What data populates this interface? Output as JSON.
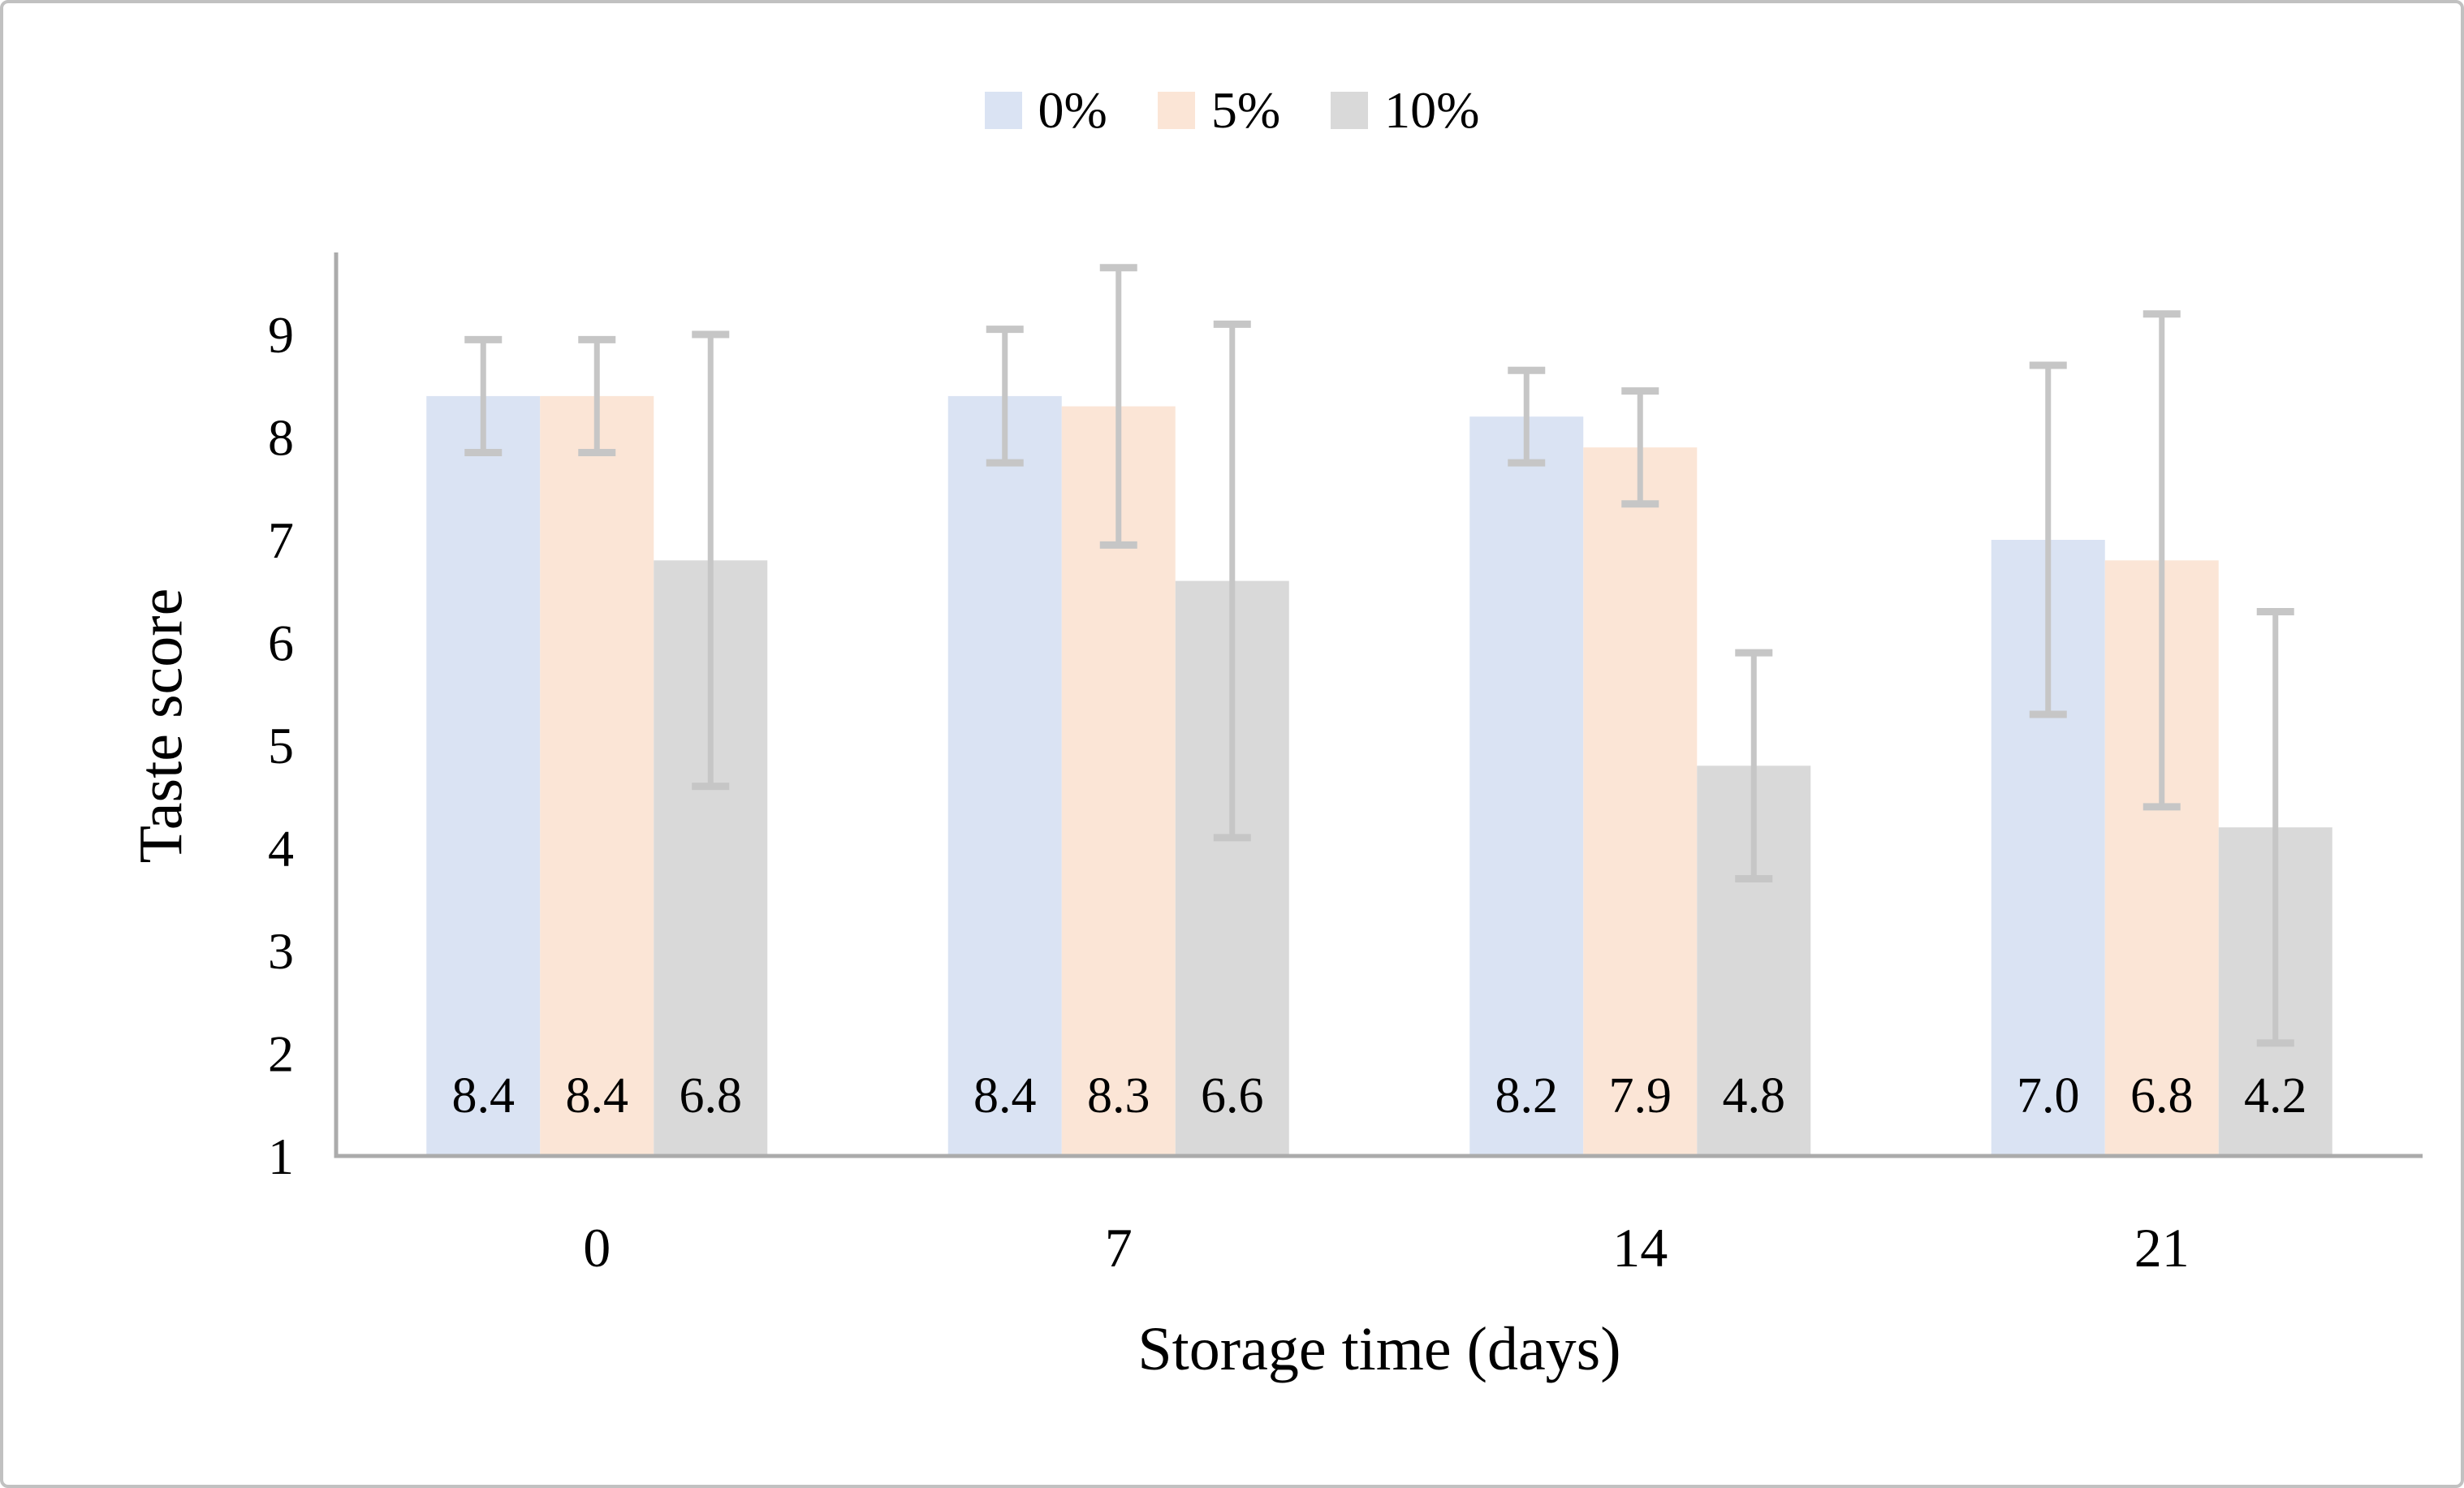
{
  "figure": {
    "background": "#ffffff",
    "border_color": "#c1c1c1"
  },
  "chart_data": {
    "type": "bar",
    "title": "",
    "xlabel": "Storage time (days)",
    "ylabel": "Taste score",
    "categories": [
      "0",
      "7",
      "14",
      "21"
    ],
    "series": [
      {
        "name": "0%",
        "color": "#dae3f3",
        "values": [
          8.4,
          8.4,
          8.2,
          7.0
        ],
        "labels": [
          "8.4",
          "8.4",
          "8.2",
          "7.0"
        ],
        "errors_plus_minus": [
          0.55,
          0.65,
          0.45,
          1.7
        ]
      },
      {
        "name": "5%",
        "color": "#fbe5d6",
        "values": [
          8.4,
          8.3,
          7.9,
          6.8
        ],
        "labels": [
          "8.4",
          "8.3",
          "7.9",
          "6.8"
        ],
        "errors_plus_minus": [
          0.55,
          1.35,
          0.55,
          2.4
        ]
      },
      {
        "name": "10%",
        "color": "#d9d9d9",
        "values": [
          6.8,
          6.6,
          4.8,
          4.2
        ],
        "labels": [
          "6.8",
          "6.6",
          "4.8",
          "4.2"
        ],
        "errors_plus_minus": [
          2.2,
          2.5,
          1.1,
          2.1
        ]
      }
    ],
    "y_axis": {
      "min": 1,
      "max": 9,
      "ticks": [
        1,
        2,
        3,
        4,
        5,
        6,
        7,
        8,
        9
      ]
    },
    "x_axis_tick_labels": [
      "0",
      "7",
      "14",
      "21"
    ],
    "grid": false,
    "legend_position": "top",
    "legend_entries": [
      "0%",
      "5%",
      "10%"
    ],
    "error_bar_color": "#c6c6c6",
    "axis_line_color": "#ababab",
    "text_color": "#000000",
    "data_label_position": "inside-base"
  }
}
